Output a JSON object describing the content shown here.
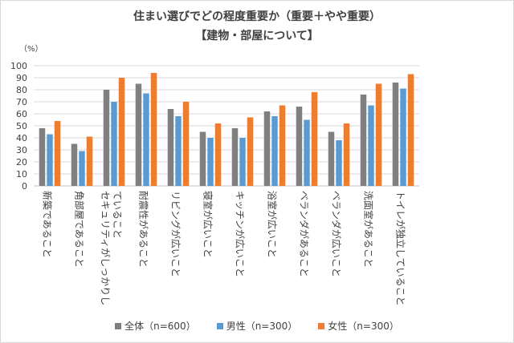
{
  "chart_data": {
    "type": "bar",
    "title": "住まい選びでどの程度重要か（重要＋やや重要）",
    "subtitle": "【建物・部屋について】",
    "unit_label": "（%）",
    "ylim": [
      0,
      100
    ],
    "yticks": [
      0,
      10,
      20,
      30,
      40,
      50,
      60,
      70,
      80,
      90,
      100
    ],
    "grid": true,
    "legend_position": "bottom",
    "categories": [
      [
        "新築であること"
      ],
      [
        "角部屋であること"
      ],
      [
        "セキュリティがしっかりし",
        "ていること"
      ],
      [
        "耐震性があること"
      ],
      [
        "リビングが広いこと"
      ],
      [
        "寝室が広いこと"
      ],
      [
        "キッチンが広いこと"
      ],
      [
        "浴室が広いこと"
      ],
      [
        "ベランダがあること"
      ],
      [
        "ベランダが広いこと"
      ],
      [
        "洗面室があること"
      ],
      [
        "トイレが独立していること"
      ]
    ],
    "series": [
      {
        "name": "全体（n=600）",
        "color": "#7f7f7f",
        "values": [
          48,
          35,
          80,
          85,
          64,
          45,
          48,
          62,
          66,
          45,
          76,
          86
        ]
      },
      {
        "name": "男性（n=300）",
        "color": "#5b9bd5",
        "values": [
          43,
          29,
          70,
          77,
          58,
          40,
          40,
          58,
          55,
          38,
          67,
          81
        ]
      },
      {
        "name": "女性（n=300）",
        "color": "#ed7d31",
        "values": [
          54,
          41,
          90,
          94,
          70,
          52,
          57,
          67,
          78,
          52,
          85,
          93
        ]
      }
    ]
  }
}
